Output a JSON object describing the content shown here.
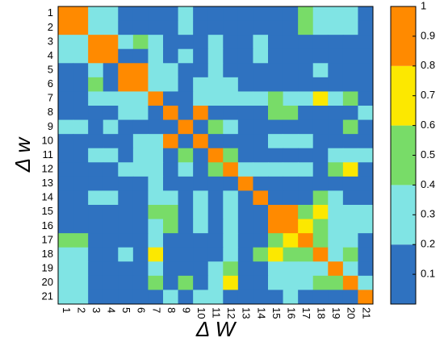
{
  "chart_data": {
    "type": "heatmap",
    "x_label": "Δ W",
    "y_label": "Δ w",
    "x_categories": [
      1,
      2,
      3,
      4,
      5,
      6,
      7,
      8,
      9,
      10,
      11,
      12,
      13,
      14,
      15,
      16,
      17,
      18,
      19,
      20,
      21
    ],
    "y_categories": [
      1,
      2,
      3,
      4,
      5,
      6,
      7,
      8,
      9,
      10,
      11,
      12,
      13,
      14,
      15,
      16,
      17,
      18,
      19,
      20,
      21
    ],
    "z": [
      [
        1,
        0.9,
        0.3,
        0.3,
        0.1,
        0.1,
        0.1,
        0.1,
        0.3,
        0.1,
        0.1,
        0.1,
        0.1,
        0.1,
        0.1,
        0.1,
        0.5,
        0.3,
        0.3,
        0.3,
        0.1
      ],
      [
        0.9,
        1,
        0.3,
        0.3,
        0.1,
        0.1,
        0.1,
        0.1,
        0.3,
        0.1,
        0.1,
        0.1,
        0.1,
        0.1,
        0.1,
        0.1,
        0.5,
        0.3,
        0.3,
        0.3,
        0.1
      ],
      [
        0.3,
        0.3,
        1,
        0.9,
        0.3,
        0.5,
        0.3,
        0.1,
        0.1,
        0.1,
        0.3,
        0.1,
        0.1,
        0.3,
        0.1,
        0.1,
        0.1,
        0.1,
        0.1,
        0.1,
        0.1
      ],
      [
        0.3,
        0.3,
        0.9,
        1,
        0.1,
        0.1,
        0.3,
        0.1,
        0.3,
        0.1,
        0.3,
        0.1,
        0.1,
        0.3,
        0.1,
        0.1,
        0.1,
        0.1,
        0.1,
        0.1,
        0.1
      ],
      [
        0.1,
        0.1,
        0.3,
        0.1,
        1,
        0.9,
        0.3,
        0.3,
        0.1,
        0.1,
        0.3,
        0.1,
        0.1,
        0.1,
        0.1,
        0.1,
        0.1,
        0.3,
        0.1,
        0.1,
        0.1
      ],
      [
        0.1,
        0.1,
        0.5,
        0.1,
        0.9,
        1,
        0.3,
        0.3,
        0.1,
        0.3,
        0.3,
        0.3,
        0.1,
        0.1,
        0.1,
        0.1,
        0.1,
        0.1,
        0.1,
        0.1,
        0.1
      ],
      [
        0.1,
        0.1,
        0.3,
        0.3,
        0.3,
        0.3,
        1,
        0.1,
        0.1,
        0.3,
        0.3,
        0.3,
        0.3,
        0.3,
        0.5,
        0.3,
        0.3,
        0.7,
        0.3,
        0.5,
        0.1
      ],
      [
        0.1,
        0.1,
        0.1,
        0.1,
        0.3,
        0.3,
        0.1,
        1,
        0.1,
        0.9,
        0.1,
        0.1,
        0.1,
        0.1,
        0.5,
        0.5,
        0.1,
        0.1,
        0.1,
        0.1,
        0.3
      ],
      [
        0.3,
        0.3,
        0.1,
        0.3,
        0.1,
        0.1,
        0.1,
        0.1,
        1,
        0.1,
        0.5,
        0.3,
        0.1,
        0.1,
        0.1,
        0.1,
        0.1,
        0.1,
        0.1,
        0.5,
        0.1
      ],
      [
        0.1,
        0.1,
        0.1,
        0.1,
        0.1,
        0.3,
        0.3,
        0.9,
        0.1,
        1,
        0.1,
        0.1,
        0.1,
        0.1,
        0.3,
        0.3,
        0.3,
        0.1,
        0.1,
        0.1,
        0.1
      ],
      [
        0.1,
        0.1,
        0.3,
        0.3,
        0.1,
        0.3,
        0.3,
        0.1,
        0.5,
        0.1,
        1,
        0.5,
        0.1,
        0.1,
        0.1,
        0.1,
        0.1,
        0.1,
        0.3,
        0.3,
        0.3
      ],
      [
        0.1,
        0.1,
        0.1,
        0.1,
        0.3,
        0.3,
        0.3,
        0.1,
        0.3,
        0.1,
        0.5,
        1,
        0.3,
        0.3,
        0.3,
        0.3,
        0.3,
        0.1,
        0.5,
        0.7,
        0.1
      ],
      [
        0.1,
        0.1,
        0.1,
        0.1,
        0.1,
        0.1,
        0.3,
        0.1,
        0.1,
        0.1,
        0.1,
        0.1,
        1,
        0.1,
        0.1,
        0.1,
        0.1,
        0.1,
        0.1,
        0.1,
        0.1
      ],
      [
        0.1,
        0.1,
        0.3,
        0.3,
        0.1,
        0.1,
        0.3,
        0.3,
        0.1,
        0.3,
        0.1,
        0.3,
        0.1,
        1,
        0.1,
        0.1,
        0.1,
        0.5,
        0.3,
        0.1,
        0.1
      ],
      [
        0.1,
        0.1,
        0.1,
        0.1,
        0.1,
        0.1,
        0.5,
        0.5,
        0.1,
        0.3,
        0.1,
        0.3,
        0.1,
        0.1,
        1,
        0.9,
        0.5,
        0.7,
        0.3,
        0.3,
        0.3
      ],
      [
        0.1,
        0.1,
        0.1,
        0.1,
        0.1,
        0.1,
        0.3,
        0.5,
        0.1,
        0.3,
        0.1,
        0.3,
        0.1,
        0.1,
        0.9,
        1,
        0.7,
        0.5,
        0.3,
        0.3,
        0.3
      ],
      [
        0.5,
        0.5,
        0.1,
        0.1,
        0.1,
        0.1,
        0.3,
        0.1,
        0.1,
        0.1,
        0.1,
        0.3,
        0.1,
        0.1,
        0.5,
        0.7,
        1,
        0.5,
        0.3,
        0.3,
        0.1
      ],
      [
        0.3,
        0.3,
        0.1,
        0.1,
        0.3,
        0.1,
        0.7,
        0.1,
        0.1,
        0.1,
        0.1,
        0.3,
        0.1,
        0.5,
        0.7,
        0.5,
        0.5,
        1,
        0.3,
        0.5,
        0.1
      ],
      [
        0.3,
        0.3,
        0.1,
        0.1,
        0.1,
        0.1,
        0.3,
        0.1,
        0.1,
        0.1,
        0.3,
        0.5,
        0.1,
        0.1,
        0.3,
        0.3,
        0.3,
        0.3,
        1,
        0.3,
        0.1
      ],
      [
        0.3,
        0.3,
        0.1,
        0.1,
        0.1,
        0.1,
        0.5,
        0.1,
        0.5,
        0.1,
        0.3,
        0.7,
        0.1,
        0.1,
        0.3,
        0.3,
        0.3,
        0.5,
        0.5,
        1,
        0.3
      ],
      [
        0.3,
        0.3,
        0.1,
        0.1,
        0.1,
        0.1,
        0.1,
        0.3,
        0.1,
        0.3,
        0.3,
        0.1,
        0.1,
        0.1,
        0.1,
        0.3,
        0.1,
        0.1,
        0.1,
        0.1,
        1
      ]
    ],
    "colorbar": {
      "lim": [
        0,
        1
      ],
      "ticks": [
        0.1,
        0.2,
        0.3,
        0.4,
        0.5,
        0.6,
        0.7,
        0.8,
        0.9,
        1
      ],
      "bins": [
        0,
        0.2,
        0.4,
        0.6,
        0.8,
        1
      ],
      "colors": [
        "#2f72c0",
        "#80e4e4",
        "#78dc68",
        "#fce800",
        "#ff8a00"
      ]
    }
  }
}
